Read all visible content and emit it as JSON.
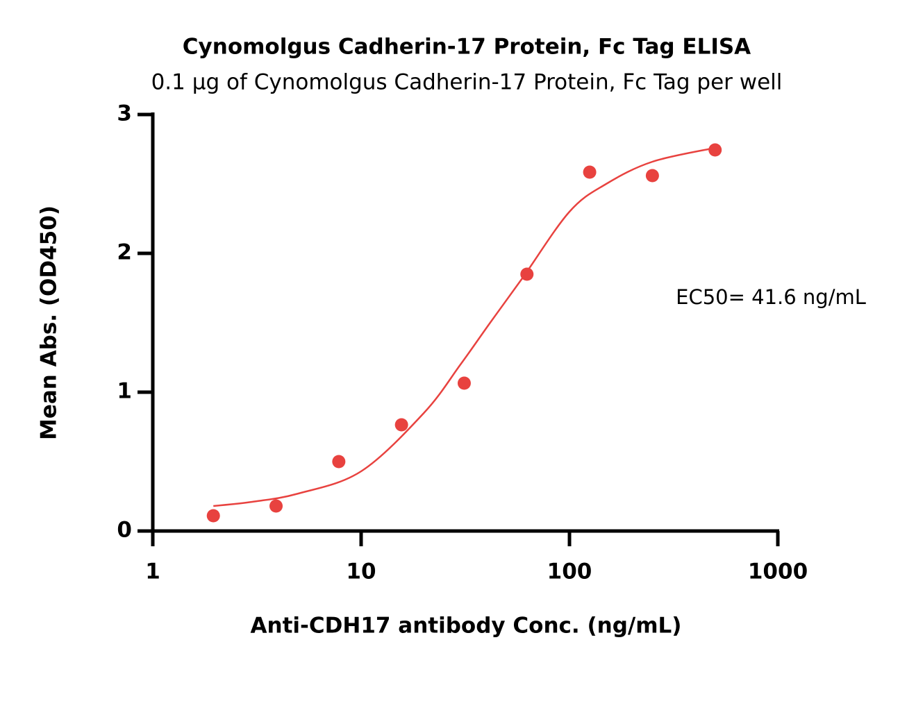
{
  "chart_data": {
    "type": "scatter",
    "title": "Cynomolgus Cadherin-17 Protein, Fc Tag ELISA",
    "subtitle": "0.1 µg of Cynomolgus Cadherin-17 Protein, Fc Tag per well",
    "x_label": "Anti-CDH17 antibody Conc. (ng/mL)",
    "y_label": "Mean Abs. (OD450)",
    "annotation": "EC50= 41.6 ng/mL",
    "x": [
      1.953,
      3.906,
      7.8125,
      15.625,
      31.25,
      62.5,
      125,
      250,
      500
    ],
    "values": [
      0.11,
      0.18,
      0.5,
      0.765,
      1.065,
      1.85,
      2.585,
      2.56,
      2.745
    ],
    "color": "#e8423f",
    "fit": {
      "x": [
        1.953,
        3,
        5,
        10,
        20,
        30,
        41.6,
        60,
        100,
        150,
        250,
        500
      ],
      "values": [
        0.18,
        0.21,
        0.27,
        0.43,
        0.85,
        1.2,
        1.5,
        1.83,
        2.3,
        2.5,
        2.66,
        2.76
      ],
      "color": "#e8423f"
    },
    "xscale": "log",
    "xlim": [
      1,
      1000
    ],
    "xticks": [
      1,
      10,
      100,
      1000
    ],
    "ylim": [
      0,
      3
    ],
    "yticks": [
      0,
      1,
      2,
      3
    ]
  }
}
